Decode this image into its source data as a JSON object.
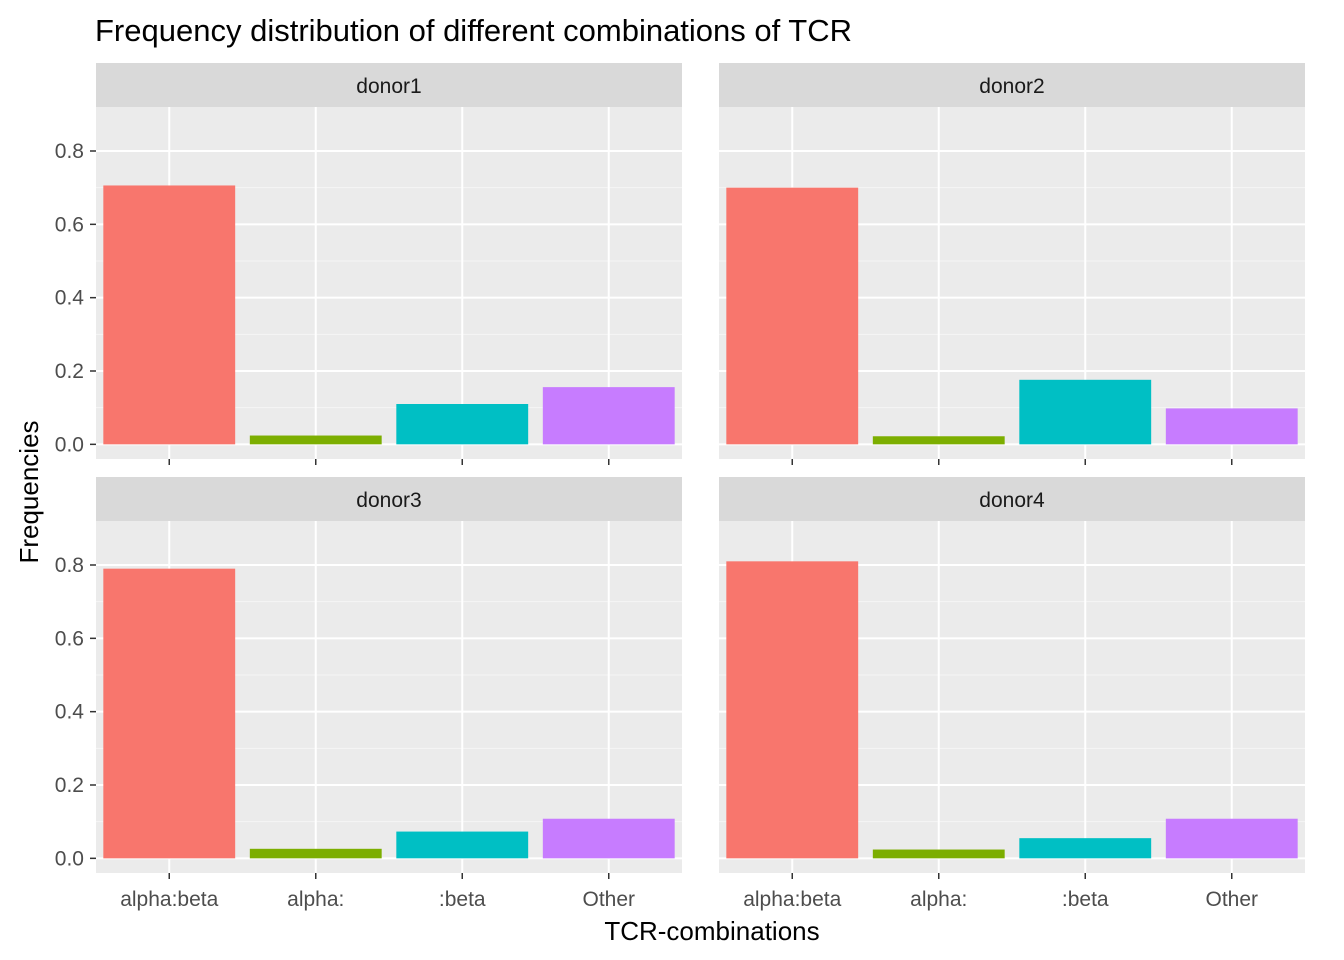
{
  "chart_data": {
    "type": "bar",
    "title": "Frequency distribution of different combinations of TCR",
    "xlabel": "TCR-combinations",
    "ylabel": "Frequencies",
    "categories": [
      "alpha:beta",
      "alpha:",
      ":beta",
      "Other"
    ],
    "colors": [
      "#F8766D",
      "#7CAE00",
      "#00BFC4",
      "#C77CFF"
    ],
    "ylim": [
      -0.04,
      0.92
    ],
    "yticks": [
      0.0,
      0.2,
      0.4,
      0.6,
      0.8
    ],
    "ytick_labels": [
      "0.0",
      "0.2",
      "0.4",
      "0.6",
      "0.8"
    ],
    "grid": true,
    "legend": "none",
    "panels": [
      {
        "name": "donor1",
        "values": [
          0.706,
          0.024,
          0.11,
          0.156
        ]
      },
      {
        "name": "donor2",
        "values": [
          0.7,
          0.022,
          0.176,
          0.098
        ]
      },
      {
        "name": "donor3",
        "values": [
          0.79,
          0.026,
          0.073,
          0.108
        ]
      },
      {
        "name": "donor4",
        "values": [
          0.81,
          0.024,
          0.055,
          0.108
        ]
      }
    ]
  }
}
